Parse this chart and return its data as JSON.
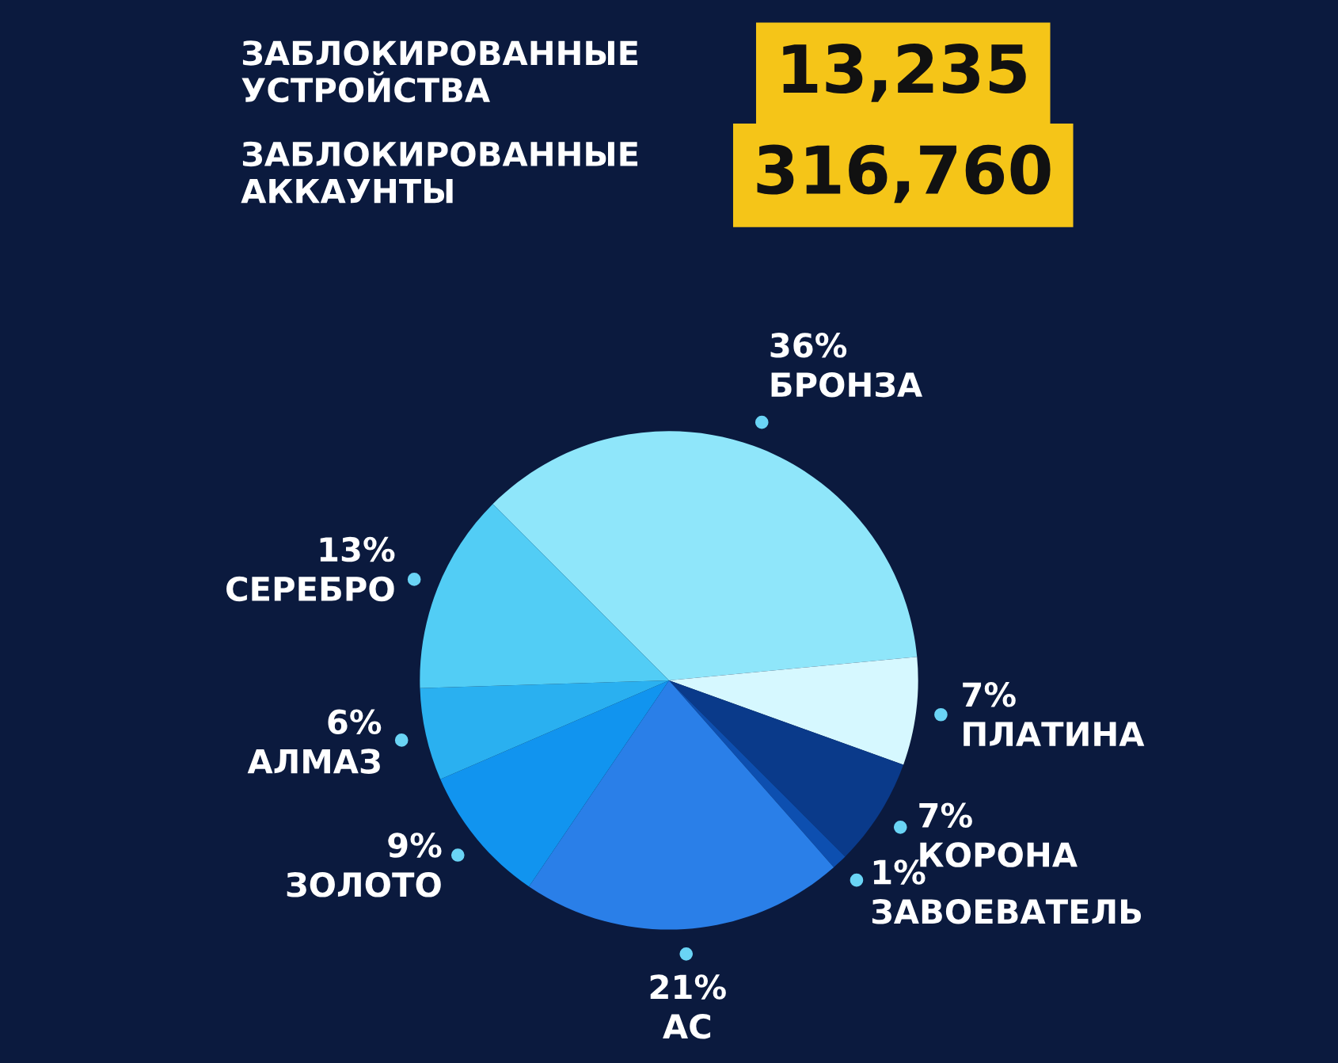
{
  "chart_data": {
    "type": "pie",
    "categories": [
      "БРОНЗА",
      "ПЛАТИНА",
      "КОРОНА",
      "ЗАВОЕВАТЕЛЬ",
      "АС",
      "ЗОЛОТО",
      "АЛМАЗ",
      "СЕРЕБРО"
    ],
    "values": [
      36,
      7,
      7,
      1,
      21,
      9,
      6,
      13
    ],
    "value_labels": [
      "36%",
      "7%",
      "7%",
      "1%",
      "21%",
      "9%",
      "6%",
      "13%"
    ],
    "colors": [
      "#8fe6fa",
      "#d6f8ff",
      "#0a3a8a",
      "#0d4fb0",
      "#2a7fe8",
      "#1194ef",
      "#2ab0f0",
      "#52cdf5"
    ],
    "annotations": [
      "ЗАБЛОКИРОВАННЫЕ\nУСТРОЙСТВА",
      "13,235",
      "ЗАБЛОКИРОВАННЫЕ\nАККАУНТЫ",
      "316,760"
    ],
    "legend": false
  }
}
